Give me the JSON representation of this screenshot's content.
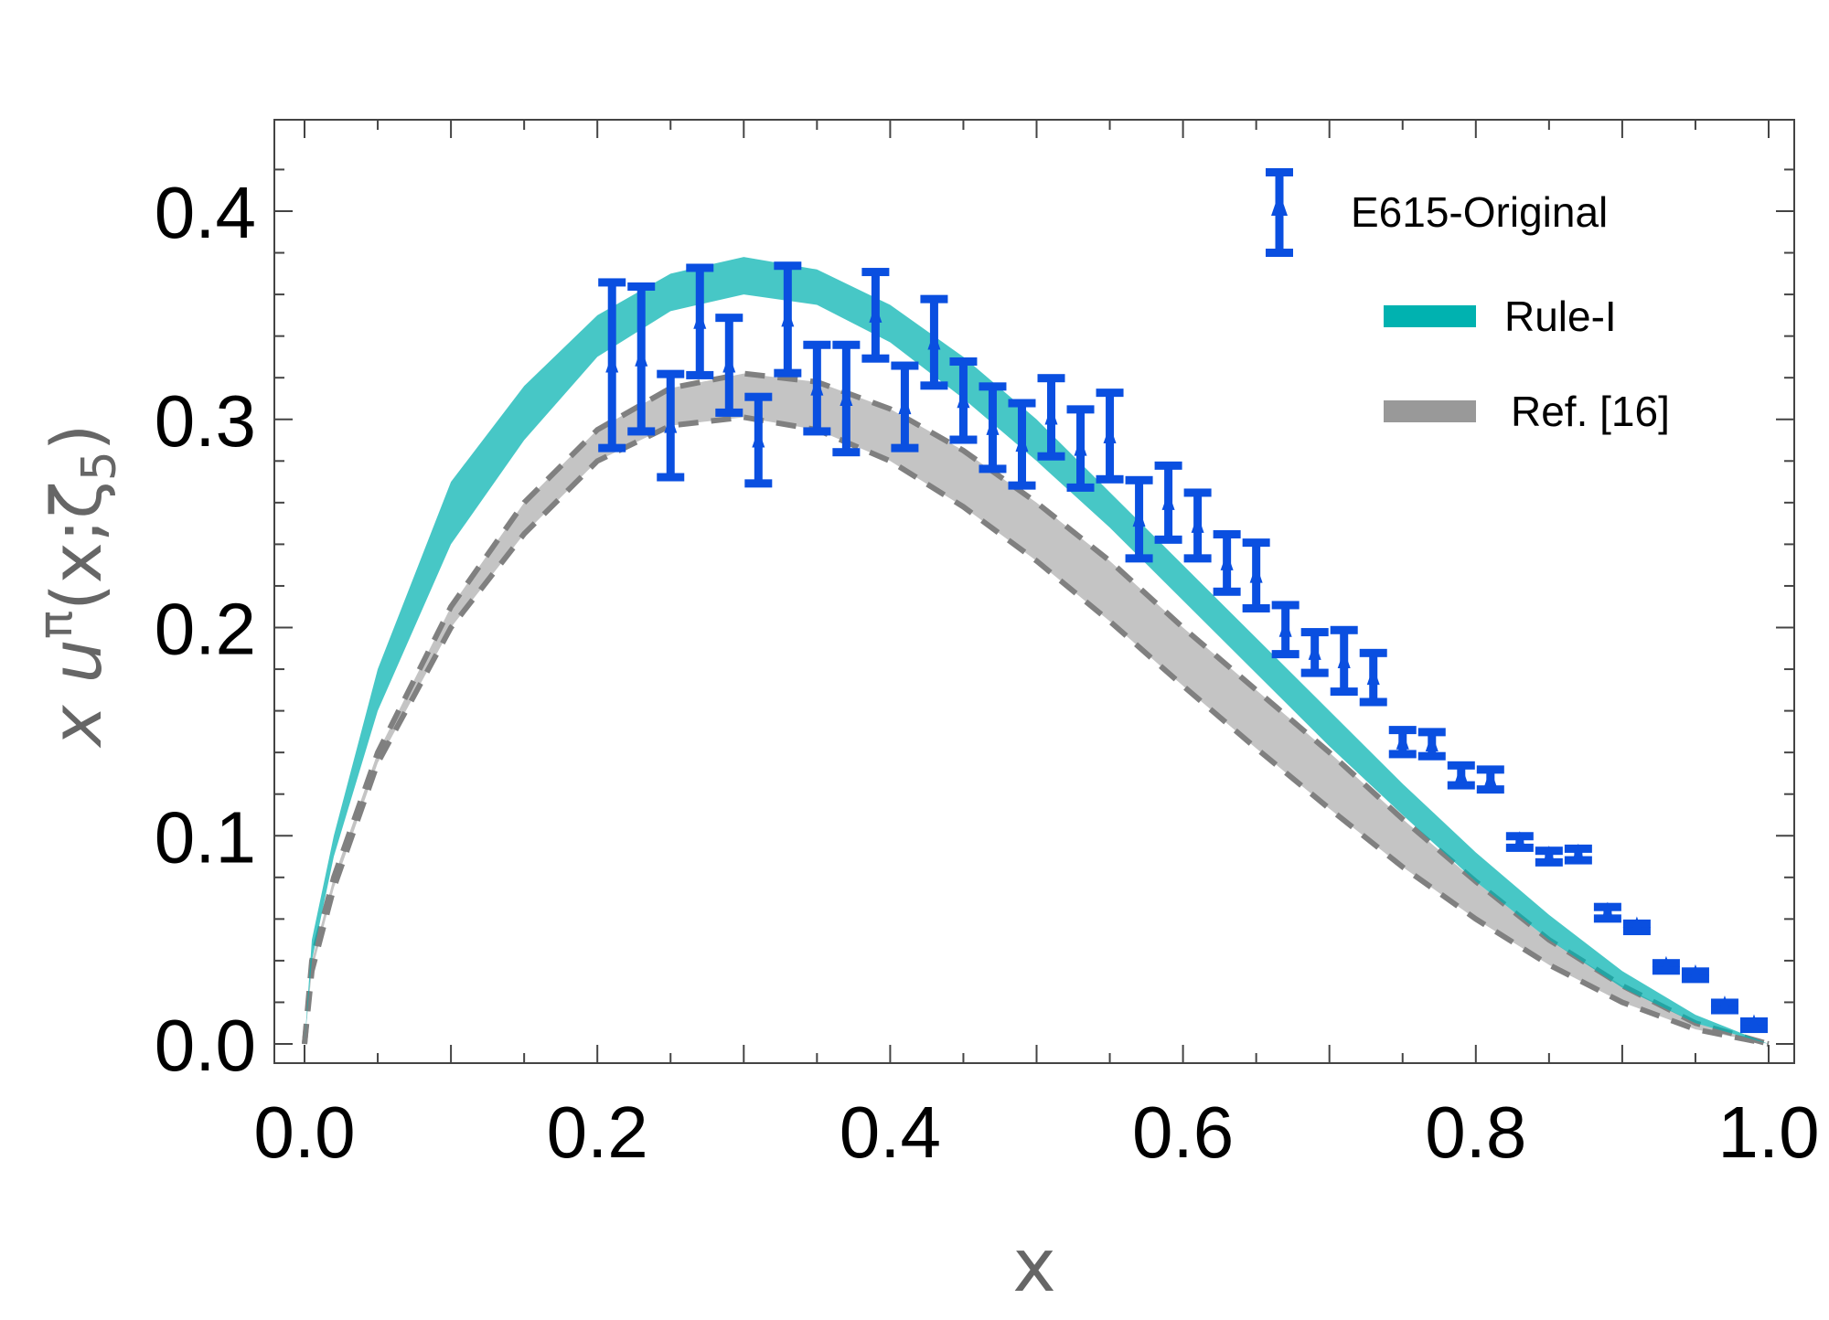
{
  "chart_data": {
    "type": "line",
    "title": "",
    "xlabel": "x",
    "ylabel": "x uπ(x;ζ5)",
    "ylabel_parts": {
      "pre": "x u",
      "sup": "π",
      "mid": "(x;ζ",
      "sub": "5",
      "post": ")"
    },
    "xlim": [
      0,
      1
    ],
    "ylim": [
      -0.008,
      0.44
    ],
    "xticks": [
      0.0,
      0.2,
      0.4,
      0.6,
      0.8,
      1.0
    ],
    "xtick_labels": [
      "0.0",
      "0.2",
      "0.4",
      "0.6",
      "0.8",
      "1.0"
    ],
    "yticks": [
      0.0,
      0.1,
      0.2,
      0.3,
      0.4
    ],
    "ytick_labels": [
      "0.0",
      "0.1",
      "0.2",
      "0.3",
      "0.4"
    ],
    "grid": false,
    "legend_position": "top-right",
    "colors": {
      "data": "#0a4fe0",
      "rule": "#00b2b0",
      "ref": "#999999",
      "ref_dash": "#808080"
    },
    "bands": {
      "x": [
        0,
        0.005,
        0.02,
        0.05,
        0.1,
        0.15,
        0.2,
        0.25,
        0.3,
        0.35,
        0.4,
        0.45,
        0.5,
        0.55,
        0.6,
        0.65,
        0.7,
        0.75,
        0.8,
        0.85,
        0.9,
        0.95,
        1.0
      ],
      "series": [
        {
          "name": "Ref. [16]",
          "upper": [
            0,
            0.04,
            0.08,
            0.14,
            0.21,
            0.26,
            0.295,
            0.315,
            0.322,
            0.318,
            0.305,
            0.285,
            0.26,
            0.232,
            0.2,
            0.17,
            0.14,
            0.108,
            0.078,
            0.05,
            0.028,
            0.01,
            0
          ],
          "lower": [
            0,
            0.035,
            0.075,
            0.135,
            0.2,
            0.245,
            0.28,
            0.297,
            0.301,
            0.295,
            0.28,
            0.258,
            0.232,
            0.203,
            0.172,
            0.142,
            0.113,
            0.085,
            0.06,
            0.038,
            0.02,
            0.007,
            0
          ]
        },
        {
          "name": "Rule-I",
          "upper": [
            0,
            0.05,
            0.1,
            0.18,
            0.27,
            0.316,
            0.35,
            0.37,
            0.378,
            0.372,
            0.355,
            0.33,
            0.3,
            0.265,
            0.23,
            0.195,
            0.16,
            0.125,
            0.092,
            0.062,
            0.035,
            0.014,
            0
          ],
          "lower": [
            0,
            0.04,
            0.09,
            0.16,
            0.24,
            0.29,
            0.33,
            0.352,
            0.36,
            0.355,
            0.337,
            0.31,
            0.28,
            0.248,
            0.213,
            0.178,
            0.143,
            0.11,
            0.078,
            0.05,
            0.027,
            0.01,
            0
          ]
        }
      ]
    },
    "data_series": {
      "name": "E615-Original",
      "x": [
        0.21,
        0.23,
        0.25,
        0.27,
        0.29,
        0.31,
        0.33,
        0.35,
        0.37,
        0.39,
        0.41,
        0.43,
        0.45,
        0.47,
        0.49,
        0.51,
        0.53,
        0.55,
        0.57,
        0.59,
        0.61,
        0.63,
        0.65,
        0.67,
        0.69,
        0.71,
        0.73,
        0.75,
        0.77,
        0.79,
        0.81,
        0.83,
        0.85,
        0.87,
        0.89,
        0.91,
        0.93,
        0.95,
        0.97,
        0.99
      ],
      "y": [
        0.326,
        0.329,
        0.297,
        0.347,
        0.326,
        0.29,
        0.348,
        0.315,
        0.31,
        0.35,
        0.306,
        0.337,
        0.309,
        0.296,
        0.288,
        0.301,
        0.286,
        0.292,
        0.252,
        0.26,
        0.249,
        0.231,
        0.225,
        0.199,
        0.188,
        0.184,
        0.176,
        0.145,
        0.144,
        0.129,
        0.127,
        0.097,
        0.09,
        0.091,
        0.063,
        0.056,
        0.037,
        0.033,
        0.018,
        0.009
      ],
      "err": [
        0.04,
        0.035,
        0.025,
        0.026,
        0.023,
        0.021,
        0.026,
        0.021,
        0.026,
        0.021,
        0.02,
        0.021,
        0.019,
        0.02,
        0.02,
        0.019,
        0.019,
        0.021,
        0.019,
        0.018,
        0.016,
        0.014,
        0.016,
        0.012,
        0.01,
        0.015,
        0.012,
        0.006,
        0.006,
        0.005,
        0.005,
        0.003,
        0.003,
        0.003,
        0.003,
        0.002,
        0.002,
        0.002,
        0.002,
        0.002
      ]
    },
    "legend": [
      {
        "label": "E615-Original",
        "kind": "errorbar"
      },
      {
        "label": "Rule-I",
        "kind": "band"
      },
      {
        "label": "Ref. [16]",
        "kind": "band"
      }
    ]
  }
}
